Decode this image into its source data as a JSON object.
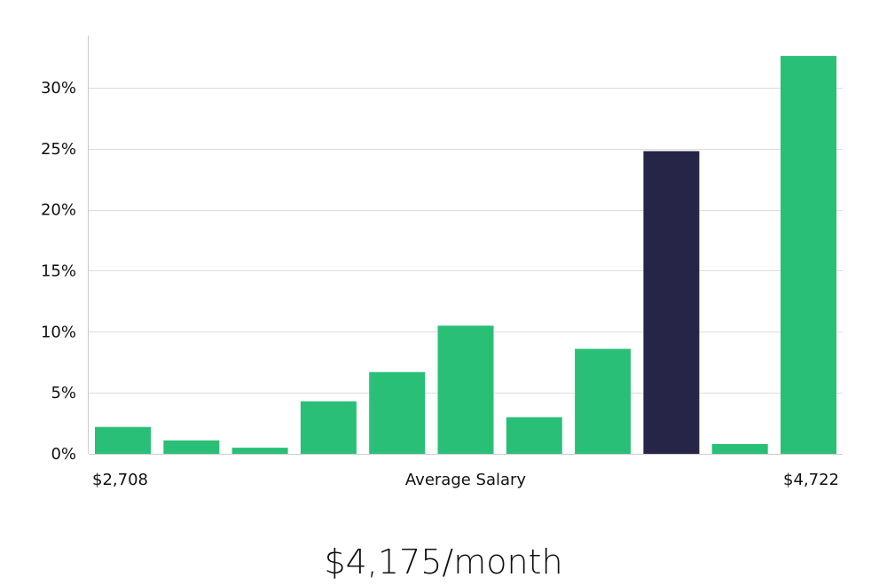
{
  "chart_data": {
    "type": "bar",
    "title": "",
    "xlabel": "Average Salary",
    "ylabel": "",
    "x_range_labels": {
      "min": "$2,708",
      "max": "$4,722"
    },
    "y_ticks": [
      "0%",
      "5%",
      "10%",
      "15%",
      "20%",
      "25%",
      "30%"
    ],
    "ylim": [
      0,
      34
    ],
    "y_unit": "%",
    "values": [
      2.2,
      1.1,
      0.5,
      4.3,
      6.7,
      10.5,
      3.0,
      8.6,
      24.8,
      0.8,
      32.6
    ],
    "highlight_index": 8,
    "colors": {
      "bar": "#2abf77",
      "highlight": "#272547",
      "grid": "#dddddd",
      "axis": "#cccccc",
      "text": "#111111"
    },
    "grid": true
  },
  "summary": {
    "value_text": "$4,175/month"
  }
}
